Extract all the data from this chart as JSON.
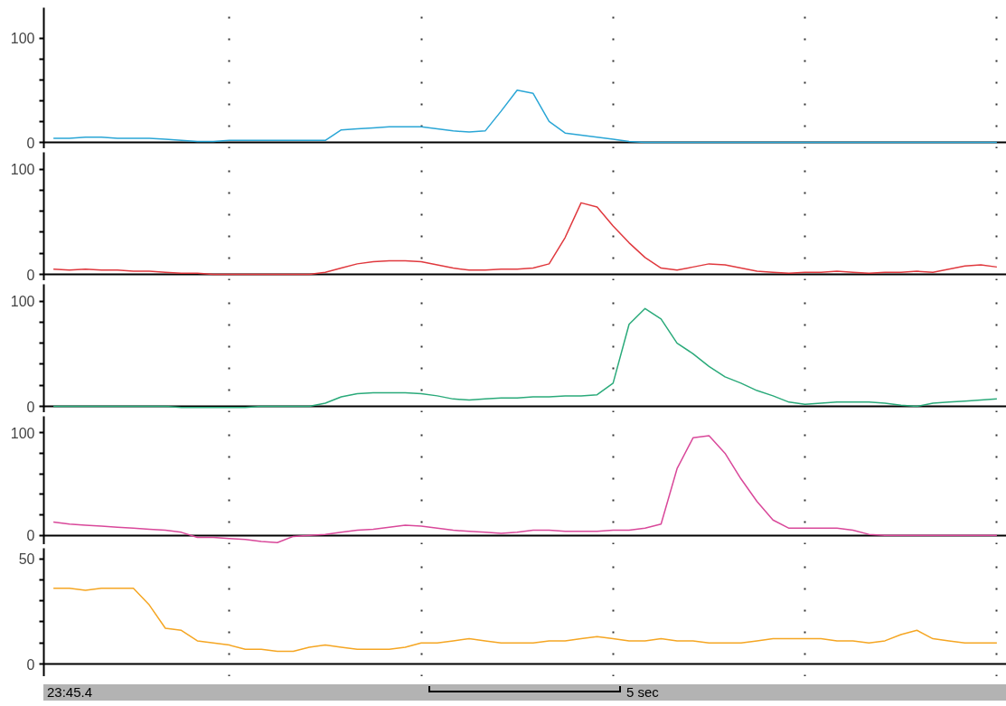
{
  "chart_data": [
    {
      "type": "line",
      "categories": [
        null,
        null,
        null,
        null,
        null,
        null,
        null,
        null,
        null,
        null,
        null,
        null,
        null,
        null,
        null,
        null,
        null,
        null,
        null,
        null,
        null,
        null,
        null,
        null,
        null,
        null,
        null,
        null,
        null,
        null,
        null,
        null,
        null,
        null,
        null,
        null,
        null,
        null,
        null,
        null,
        null,
        null,
        null,
        null,
        null,
        null,
        null,
        null,
        null,
        null,
        null,
        null,
        null,
        null,
        null,
        null,
        null,
        null,
        null,
        null
      ],
      "series": [
        {
          "color": "#2aa6d6",
          "values": [
            4,
            4,
            5,
            5,
            4,
            4,
            4,
            3,
            2,
            1,
            1,
            2,
            2,
            2,
            2,
            2,
            2,
            2,
            12,
            13,
            14,
            15,
            15,
            15,
            13,
            11,
            10,
            11,
            30,
            50,
            47,
            20,
            9,
            7,
            5,
            3,
            1,
            0,
            0,
            0,
            0,
            0,
            0,
            0,
            0,
            0,
            0,
            0,
            0,
            0,
            0,
            0,
            0,
            0,
            0,
            0,
            0,
            0,
            0,
            0
          ]
        }
      ],
      "ylim": [
        -6,
        129
      ],
      "yticks": [
        0,
        {
          "value": 20,
          "label": null
        },
        {
          "value": 40,
          "label": null
        },
        {
          "value": 60,
          "label": null
        },
        {
          "value": 80,
          "label": null
        },
        100
      ],
      "grid": "x",
      "tick_labels": "y"
    },
    {
      "type": "line",
      "categories": [
        null,
        null,
        null,
        null,
        null,
        null,
        null,
        null,
        null,
        null,
        null,
        null,
        null,
        null,
        null,
        null,
        null,
        null,
        null,
        null,
        null,
        null,
        null,
        null,
        null,
        null,
        null,
        null,
        null,
        null,
        null,
        null,
        null,
        null,
        null,
        null,
        null,
        null,
        null,
        null,
        null,
        null,
        null,
        null,
        null,
        null,
        null,
        null,
        null,
        null,
        null,
        null,
        null,
        null,
        null,
        null,
        null,
        null,
        null,
        null
      ],
      "series": [
        {
          "color": "#e0393e",
          "values": [
            5,
            4,
            5,
            4,
            4,
            3,
            3,
            2,
            1,
            1,
            0,
            0,
            0,
            0,
            0,
            0,
            0,
            2,
            6,
            10,
            12,
            13,
            13,
            12,
            9,
            6,
            4,
            4,
            5,
            5,
            6,
            10,
            35,
            68,
            64,
            46,
            30,
            16,
            6,
            4,
            7,
            10,
            9,
            6,
            3,
            2,
            1,
            2,
            2,
            3,
            2,
            1,
            2,
            2,
            3,
            2,
            5,
            8,
            9,
            7
          ]
        }
      ],
      "ylim": [
        -6,
        116
      ],
      "yticks": [
        0,
        {
          "value": 20,
          "label": null
        },
        {
          "value": 40,
          "label": null
        },
        {
          "value": 60,
          "label": null
        },
        {
          "value": 80,
          "label": null
        },
        100
      ],
      "grid": "x",
      "tick_labels": "y"
    },
    {
      "type": "line",
      "categories": [
        null,
        null,
        null,
        null,
        null,
        null,
        null,
        null,
        null,
        null,
        null,
        null,
        null,
        null,
        null,
        null,
        null,
        null,
        null,
        null,
        null,
        null,
        null,
        null,
        null,
        null,
        null,
        null,
        null,
        null,
        null,
        null,
        null,
        null,
        null,
        null,
        null,
        null,
        null,
        null,
        null,
        null,
        null,
        null,
        null,
        null,
        null,
        null,
        null,
        null,
        null,
        null,
        null,
        null,
        null,
        null,
        null,
        null,
        null,
        null
      ],
      "series": [
        {
          "color": "#2aaa7a",
          "values": [
            0,
            0,
            0,
            0,
            0,
            0,
            0,
            0,
            -1,
            -1,
            -1,
            -1,
            -1,
            0,
            0,
            0,
            0,
            3,
            9,
            12,
            13,
            13,
            13,
            12,
            10,
            7,
            6,
            7,
            8,
            8,
            9,
            9,
            10,
            10,
            11,
            22,
            78,
            93,
            83,
            60,
            50,
            38,
            28,
            22,
            15,
            10,
            4,
            2,
            3,
            4,
            4,
            4,
            3,
            1,
            0,
            3,
            4,
            5,
            6,
            7
          ]
        }
      ],
      "ylim": [
        -6,
        116
      ],
      "yticks": [
        0,
        {
          "value": 20,
          "label": null
        },
        {
          "value": 40,
          "label": null
        },
        {
          "value": 60,
          "label": null
        },
        {
          "value": 80,
          "label": null
        },
        100
      ],
      "grid": "x",
      "tick_labels": "y"
    },
    {
      "type": "line",
      "categories": [
        null,
        null,
        null,
        null,
        null,
        null,
        null,
        null,
        null,
        null,
        null,
        null,
        null,
        null,
        null,
        null,
        null,
        null,
        null,
        null,
        null,
        null,
        null,
        null,
        null,
        null,
        null,
        null,
        null,
        null,
        null,
        null,
        null,
        null,
        null,
        null,
        null,
        null,
        null,
        null,
        null,
        null,
        null,
        null,
        null,
        null,
        null,
        null,
        null,
        null,
        null,
        null,
        null,
        null,
        null,
        null,
        null,
        null,
        null,
        null
      ],
      "series": [
        {
          "color": "#d9489a",
          "values": [
            13,
            11,
            10,
            9,
            8,
            7,
            6,
            5,
            3,
            -2,
            -2,
            -3,
            -4,
            -6,
            -7,
            -1,
            0,
            1,
            3,
            5,
            6,
            8,
            10,
            9,
            7,
            5,
            4,
            3,
            2,
            3,
            5,
            5,
            4,
            4,
            4,
            5,
            5,
            7,
            11,
            65,
            95,
            97,
            80,
            55,
            33,
            15,
            7,
            7,
            7,
            7,
            5,
            1,
            0,
            0,
            0,
            0,
            0,
            0,
            0,
            0
          ]
        }
      ],
      "ylim": [
        -9,
        116
      ],
      "yticks": [
        0,
        {
          "value": 20,
          "label": null
        },
        {
          "value": 40,
          "label": null
        },
        {
          "value": 60,
          "label": null
        },
        {
          "value": 80,
          "label": null
        },
        100
      ],
      "grid": "x",
      "tick_labels": "y"
    },
    {
      "type": "line",
      "categories": [
        null,
        null,
        null,
        null,
        null,
        null,
        null,
        null,
        null,
        null,
        null,
        null,
        null,
        null,
        null,
        null,
        null,
        null,
        null,
        null,
        null,
        null,
        null,
        null,
        null,
        null,
        null,
        null,
        null,
        null,
        null,
        null,
        null,
        null,
        null,
        null,
        null,
        null,
        null,
        null,
        null,
        null,
        null,
        null,
        null,
        null,
        null,
        null,
        null,
        null,
        null,
        null,
        null,
        null,
        null,
        null,
        null,
        null,
        null,
        null
      ],
      "series": [
        {
          "color": "#f5a623",
          "values": [
            36,
            36,
            35,
            36,
            36,
            36,
            28,
            17,
            16,
            11,
            10,
            9,
            7,
            7,
            6,
            6,
            8,
            9,
            8,
            7,
            7,
            7,
            8,
            10,
            10,
            11,
            12,
            11,
            10,
            10,
            10,
            11,
            11,
            12,
            13,
            12,
            11,
            11,
            12,
            11,
            11,
            10,
            10,
            10,
            11,
            12,
            12,
            12,
            12,
            11,
            11,
            10,
            11,
            14,
            16,
            12,
            11,
            10,
            10,
            10
          ]
        }
      ],
      "ylim": [
        -6,
        55
      ],
      "yticks": [
        0,
        {
          "value": 10,
          "label": null
        },
        {
          "value": 20,
          "label": null
        },
        {
          "value": 30,
          "label": null
        },
        {
          "value": 40,
          "label": null
        },
        50
      ],
      "grid": "x",
      "tick_labels": "y",
      "annotations": [
        "23:45.4",
        "5 sec"
      ]
    }
  ]
}
